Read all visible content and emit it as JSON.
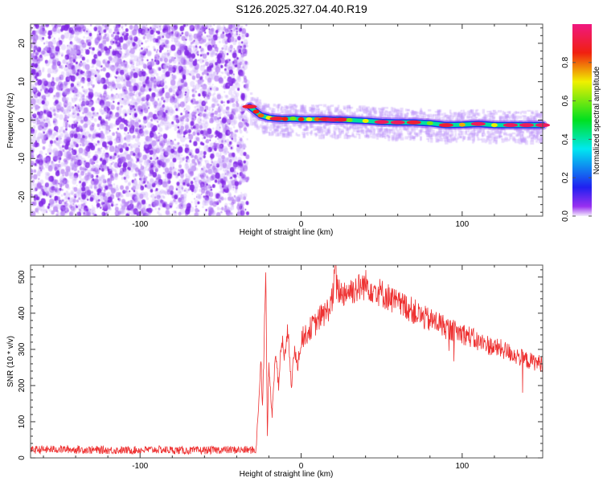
{
  "title": "S126.2025.327.04.40.R19",
  "chart_data": [
    {
      "type": "heatmap",
      "title": "S126.2025.327.04.40.R19",
      "xlabel": "Height of straight line (km)",
      "ylabel": "Frequency (Hz)",
      "xlim": [
        -168,
        150
      ],
      "ylim": [
        -25,
        25
      ],
      "xticks": [
        -100,
        0,
        100
      ],
      "yticks": [
        -20,
        -10,
        0,
        10,
        20
      ],
      "noise_region_km": [
        -168,
        -33
      ],
      "ridge": {
        "x": [
          -32,
          -28,
          -25,
          -20,
          -15,
          -10,
          -5,
          0,
          5,
          10,
          15,
          20,
          25,
          30,
          40,
          50,
          60,
          70,
          80,
          90,
          100,
          110,
          120,
          130,
          140,
          150
        ],
        "freq": [
          3.5,
          2.2,
          1.2,
          0.6,
          0.4,
          0.3,
          0.4,
          0.2,
          0.2,
          0.2,
          0.2,
          0.1,
          0.1,
          0.0,
          -0.2,
          -0.5,
          -0.6,
          -0.6,
          -0.8,
          -1.3,
          -1.2,
          -1.0,
          -1.3,
          -1.3,
          -1.3,
          -1.3
        ],
        "amplitude": [
          0.9,
          0.85,
          0.8,
          0.7,
          0.9,
          0.85,
          0.6,
          0.85,
          0.7,
          0.8,
          0.9,
          0.95,
          0.9,
          0.6,
          0.7,
          0.95,
          0.95,
          0.9,
          0.6,
          0.9,
          0.75,
          0.95,
          0.7,
          0.95,
          0.95,
          0.95
        ]
      },
      "colorbar": {
        "label": "Normalized spectral amplitude",
        "ticks": [
          "0.0",
          "0.2",
          "0.4",
          "0.6",
          "0.8"
        ],
        "range": [
          0,
          1
        ]
      }
    },
    {
      "type": "line",
      "xlabel": "Height of straight line (km)",
      "ylabel": "SNR (10 * v/v)",
      "xlim": [
        -168,
        150
      ],
      "ylim": [
        0,
        533
      ],
      "xticks": [
        -100,
        0,
        100
      ],
      "yticks": [
        0,
        100,
        200,
        300,
        400,
        500
      ],
      "color": "#ee3333",
      "series": [
        {
          "name": "SNR",
          "x": [
            -168,
            -150,
            -130,
            -110,
            -90,
            -70,
            -50,
            -35,
            -28,
            -26,
            -25,
            -24,
            -23,
            -22,
            -21,
            -20,
            -18,
            -16,
            -14,
            -12,
            -10,
            -8,
            -6,
            -4,
            -2,
            0,
            3,
            6,
            9,
            12,
            15,
            18,
            20,
            21,
            22,
            25,
            28,
            32,
            36,
            40,
            44,
            48,
            52,
            56,
            60,
            65,
            70,
            75,
            80,
            85,
            90,
            95,
            100,
            105,
            110,
            115,
            120,
            125,
            130,
            135,
            140,
            145,
            150
          ],
          "y": [
            22,
            24,
            22,
            21,
            23,
            20,
            22,
            22,
            22,
            180,
            280,
            150,
            300,
            540,
            60,
            250,
            120,
            300,
            200,
            330,
            280,
            360,
            200,
            300,
            260,
            330,
            340,
            360,
            370,
            390,
            400,
            420,
            450,
            540,
            470,
            455,
            460,
            465,
            470,
            480,
            470,
            460,
            450,
            440,
            425,
            420,
            405,
            390,
            380,
            375,
            360,
            350,
            345,
            335,
            320,
            315,
            305,
            300,
            290,
            280,
            270,
            265,
            260
          ]
        }
      ]
    }
  ]
}
